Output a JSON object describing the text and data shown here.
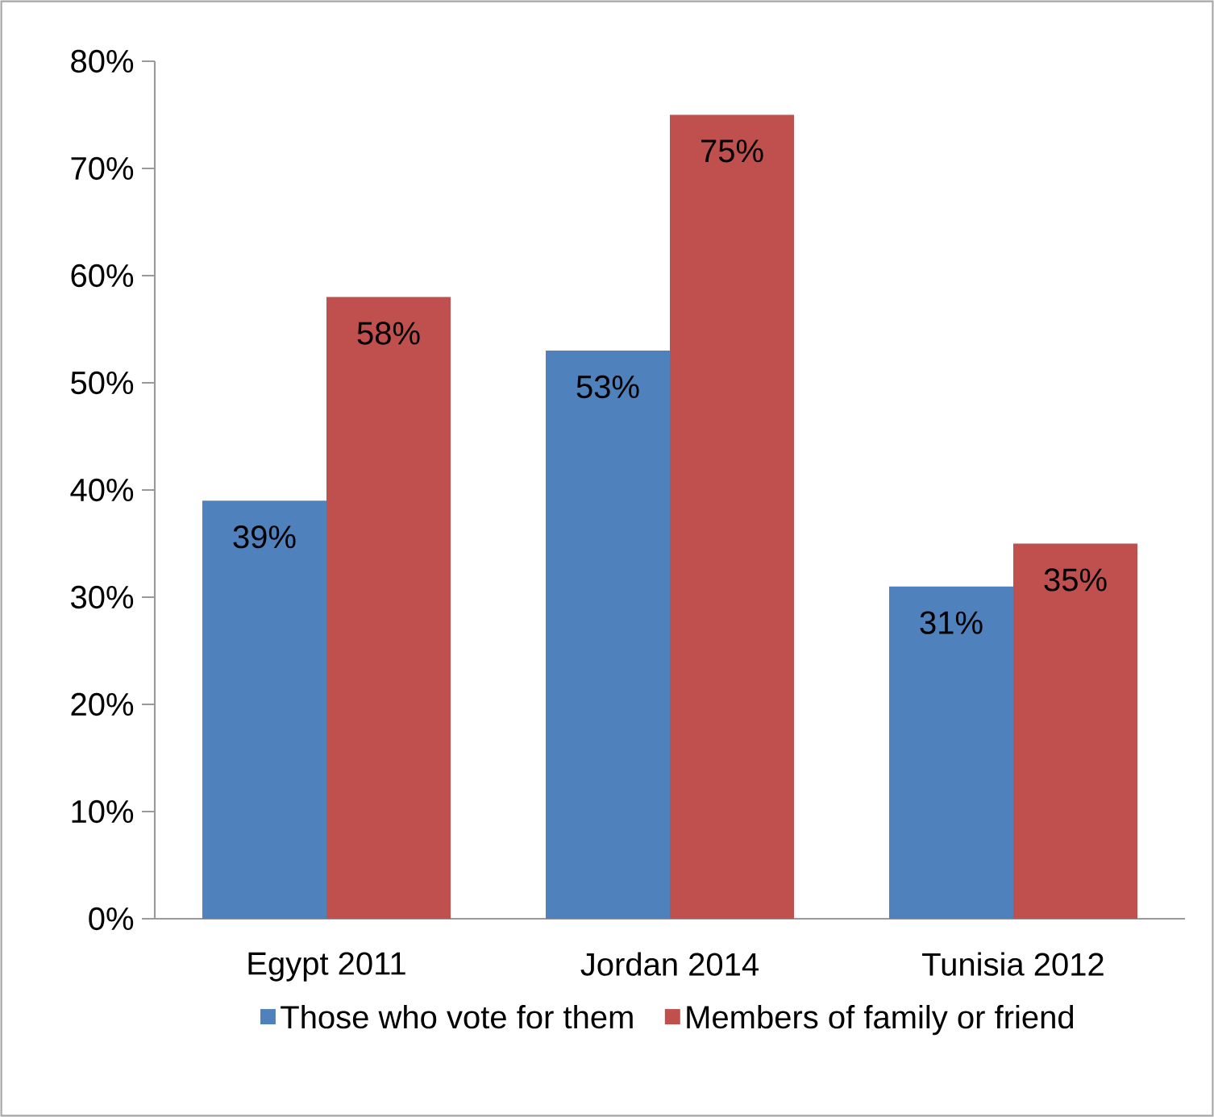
{
  "chart_data": {
    "type": "bar",
    "categories": [
      "Egypt 2011",
      "Jordan 2014",
      "Tunisia 2012"
    ],
    "series": [
      {
        "name": "Those who vote for them",
        "color": "#4f81bd",
        "values": [
          39,
          53,
          31
        ],
        "value_labels": [
          "39%",
          "53%",
          "31%"
        ]
      },
      {
        "name": "Members of family or friend",
        "color": "#c0504d",
        "values": [
          58,
          75,
          35
        ],
        "value_labels": [
          "58%",
          "75%",
          "35%"
        ]
      }
    ],
    "ylim": [
      0,
      80
    ],
    "yticks": [
      {
        "value": 0,
        "label": "0%"
      },
      {
        "value": 10,
        "label": "10%"
      },
      {
        "value": 20,
        "label": "20%"
      },
      {
        "value": 30,
        "label": "30%"
      },
      {
        "value": 40,
        "label": "40%"
      },
      {
        "value": 50,
        "label": "50%"
      },
      {
        "value": 60,
        "label": "60%"
      },
      {
        "value": 70,
        "label": "70%"
      },
      {
        "value": 80,
        "label": "80%"
      }
    ],
    "legend": "bottom"
  }
}
